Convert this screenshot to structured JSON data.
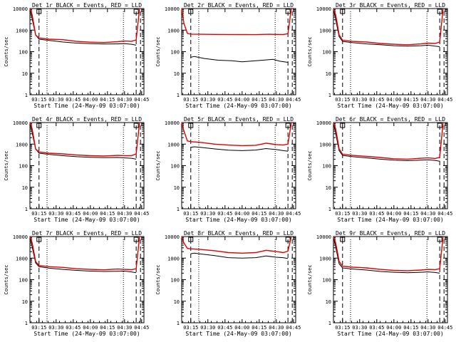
{
  "figure": {
    "xlabel": "Start Time (24-May-09 03:07:00)",
    "ylabel": "Counts/sec",
    "x_ticks": [
      "03:15",
      "03:30",
      "03:45",
      "04:00",
      "04:15",
      "04:30",
      "04:45"
    ],
    "y_ticks": [
      "1",
      "10",
      "100",
      "1000",
      "10000"
    ],
    "colors": {
      "events": "#000000",
      "lld": "#e00000",
      "axes": "#000000"
    }
  },
  "chart_data": [
    {
      "type": "line",
      "title": "Det 1r BLACK = Events, RED = LLD",
      "xlim": [
        3.117,
        4.783
      ],
      "ylim": [
        1,
        10000
      ],
      "yscale": "log",
      "grid": false,
      "vlines_dashed": [
        3.25,
        4.67,
        4.733
      ],
      "vlines_dotted": [
        3.367,
        4.483
      ],
      "series": [
        {
          "name": "Events",
          "color": "#000000",
          "x": [
            3.117,
            3.2,
            3.25,
            3.4,
            3.6,
            3.8,
            4.0,
            4.2,
            4.4,
            4.5,
            4.6,
            4.67
          ],
          "y": [
            10000,
            600,
            380,
            330,
            280,
            250,
            235,
            225,
            230,
            235,
            220,
            200
          ]
        },
        {
          "name": "LLD",
          "color": "#e00000",
          "x": [
            3.117,
            3.15,
            3.2,
            3.25,
            3.4,
            3.6,
            3.8,
            4.0,
            4.2,
            4.4,
            4.5,
            4.6,
            4.67,
            4.72
          ],
          "y": [
            10000,
            5000,
            600,
            430,
            380,
            360,
            300,
            275,
            265,
            290,
            310,
            300,
            350,
            10000
          ]
        }
      ]
    },
    {
      "type": "line",
      "title": "Det 2r BLACK = Events, RED = LLD",
      "xlim": [
        3.117,
        4.783
      ],
      "ylim": [
        1,
        10000
      ],
      "yscale": "log",
      "grid": false,
      "vlines_dashed": [
        3.25,
        4.67,
        4.733
      ],
      "vlines_dotted": [
        3.367,
        4.483
      ],
      "series": [
        {
          "name": "Events",
          "color": "#000000",
          "x": [
            3.25,
            3.3,
            3.45,
            3.65,
            3.85,
            4.0,
            4.15,
            4.3,
            4.45,
            4.55,
            4.67
          ],
          "y": [
            55,
            60,
            48,
            40,
            38,
            34,
            37,
            40,
            44,
            36,
            32
          ]
        },
        {
          "name": "LLD",
          "color": "#e00000",
          "x": [
            3.117,
            3.15,
            3.2,
            3.25,
            3.4,
            3.6,
            3.8,
            4.0,
            4.2,
            4.4,
            4.6,
            4.67,
            4.72
          ],
          "y": [
            10000,
            2000,
            700,
            650,
            640,
            630,
            625,
            620,
            615,
            640,
            620,
            680,
            10000
          ]
        }
      ]
    },
    {
      "type": "line",
      "title": "Det 3r BLACK = Events, RED = LLD",
      "xlim": [
        3.117,
        4.783
      ],
      "ylim": [
        1,
        10000
      ],
      "yscale": "log",
      "grid": false,
      "vlines_dashed": [
        3.25,
        4.67,
        4.733
      ],
      "vlines_dotted": [
        3.367,
        4.483
      ],
      "series": [
        {
          "name": "Events",
          "color": "#000000",
          "x": [
            3.117,
            3.2,
            3.25,
            3.4,
            3.6,
            3.8,
            4.0,
            4.2,
            4.4,
            4.5,
            4.6,
            4.67
          ],
          "y": [
            10000,
            500,
            300,
            260,
            230,
            210,
            190,
            180,
            190,
            200,
            180,
            170
          ]
        },
        {
          "name": "LLD",
          "color": "#e00000",
          "x": [
            3.117,
            3.15,
            3.2,
            3.25,
            3.4,
            3.6,
            3.8,
            4.0,
            4.2,
            4.4,
            4.5,
            4.6,
            4.67,
            4.72
          ],
          "y": [
            10000,
            5000,
            600,
            340,
            300,
            280,
            240,
            220,
            210,
            230,
            250,
            240,
            280,
            10000
          ]
        }
      ]
    },
    {
      "type": "line",
      "title": "Det 4r BLACK = Events, RED = LLD",
      "xlim": [
        3.117,
        4.783
      ],
      "ylim": [
        1,
        10000
      ],
      "yscale": "log",
      "grid": false,
      "vlines_dashed": [
        3.25,
        4.67,
        4.733
      ],
      "vlines_dotted": [
        3.367,
        4.483
      ],
      "series": [
        {
          "name": "Events",
          "color": "#000000",
          "x": [
            3.117,
            3.2,
            3.25,
            3.4,
            3.6,
            3.8,
            4.0,
            4.2,
            4.4,
            4.5,
            4.6,
            4.67
          ],
          "y": [
            10000,
            600,
            380,
            330,
            290,
            260,
            245,
            235,
            240,
            230,
            220,
            200
          ]
        },
        {
          "name": "LLD",
          "color": "#e00000",
          "x": [
            3.117,
            3.15,
            3.2,
            3.25,
            3.4,
            3.6,
            3.8,
            4.0,
            4.2,
            4.4,
            4.5,
            4.6,
            4.67,
            4.72
          ],
          "y": [
            10000,
            5000,
            600,
            430,
            380,
            350,
            310,
            290,
            280,
            300,
            290,
            290,
            350,
            10000
          ]
        }
      ]
    },
    {
      "type": "line",
      "title": "Det 5r BLACK = Events, RED = LLD",
      "xlim": [
        3.117,
        4.783
      ],
      "ylim": [
        1,
        10000
      ],
      "yscale": "log",
      "grid": false,
      "vlines_dashed": [
        3.25,
        4.67,
        4.733
      ],
      "vlines_dotted": [
        3.367,
        4.483
      ],
      "series": [
        {
          "name": "Events",
          "color": "#000000",
          "x": [
            3.25,
            3.3,
            3.4,
            3.6,
            3.8,
            4.0,
            4.2,
            4.35,
            4.5,
            4.6,
            4.67
          ],
          "y": [
            700,
            750,
            700,
            600,
            520,
            500,
            530,
            620,
            560,
            500,
            470
          ]
        },
        {
          "name": "LLD",
          "color": "#e00000",
          "x": [
            3.117,
            3.15,
            3.2,
            3.25,
            3.4,
            3.6,
            3.8,
            4.0,
            4.2,
            4.35,
            4.5,
            4.6,
            4.67,
            4.72
          ],
          "y": [
            10000,
            4000,
            1400,
            1300,
            1200,
            1000,
            900,
            850,
            880,
            1100,
            950,
            900,
            1000,
            10000
          ]
        }
      ]
    },
    {
      "type": "line",
      "title": "Det 6r BLACK = Events, RED = LLD",
      "xlim": [
        3.117,
        4.783
      ],
      "ylim": [
        1,
        10000
      ],
      "yscale": "log",
      "grid": false,
      "vlines_dashed": [
        3.25,
        4.67,
        4.733
      ],
      "vlines_dotted": [
        3.367,
        4.483
      ],
      "series": [
        {
          "name": "Events",
          "color": "#000000",
          "x": [
            3.117,
            3.2,
            3.25,
            3.4,
            3.6,
            3.8,
            4.0,
            4.2,
            4.4,
            4.5,
            4.6,
            4.67
          ],
          "y": [
            10000,
            500,
            300,
            260,
            230,
            200,
            180,
            170,
            180,
            185,
            175,
            160
          ]
        },
        {
          "name": "LLD",
          "color": "#e00000",
          "x": [
            3.117,
            3.15,
            3.2,
            3.25,
            3.4,
            3.6,
            3.8,
            4.0,
            4.2,
            4.4,
            4.5,
            4.6,
            4.67,
            4.72
          ],
          "y": [
            10000,
            5000,
            600,
            340,
            300,
            270,
            240,
            210,
            200,
            220,
            230,
            215,
            240,
            10000
          ]
        }
      ]
    },
    {
      "type": "line",
      "title": "Det 7r BLACK = Events, RED = LLD",
      "xlim": [
        3.117,
        4.783
      ],
      "ylim": [
        1,
        10000
      ],
      "yscale": "log",
      "grid": false,
      "vlines_dashed": [
        3.25,
        4.67,
        4.733
      ],
      "vlines_dotted": [
        3.367,
        4.483
      ],
      "series": [
        {
          "name": "Events",
          "color": "#000000",
          "x": [
            3.117,
            3.2,
            3.25,
            3.4,
            3.6,
            3.8,
            4.0,
            4.2,
            4.4,
            4.5,
            4.6,
            4.67
          ],
          "y": [
            10000,
            600,
            400,
            340,
            300,
            270,
            250,
            240,
            245,
            250,
            230,
            210
          ]
        },
        {
          "name": "LLD",
          "color": "#e00000",
          "x": [
            3.117,
            3.15,
            3.2,
            3.25,
            3.4,
            3.6,
            3.8,
            4.0,
            4.2,
            4.4,
            4.5,
            4.6,
            4.67,
            4.72
          ],
          "y": [
            10000,
            5000,
            700,
            450,
            400,
            370,
            320,
            300,
            285,
            310,
            300,
            290,
            320,
            10000
          ]
        }
      ]
    },
    {
      "type": "line",
      "title": "Det 8r BLACK = Events, RED = LLD",
      "xlim": [
        3.117,
        4.783
      ],
      "ylim": [
        1,
        10000
      ],
      "yscale": "log",
      "grid": false,
      "vlines_dashed": [
        3.25,
        4.67,
        4.733
      ],
      "vlines_dotted": [
        3.367,
        4.483
      ],
      "series": [
        {
          "name": "Events",
          "color": "#000000",
          "x": [
            3.25,
            3.3,
            3.4,
            3.6,
            3.8,
            4.0,
            4.2,
            4.35,
            4.5,
            4.6,
            4.67
          ],
          "y": [
            1600,
            1700,
            1550,
            1300,
            1050,
            1000,
            1050,
            1250,
            1100,
            1050,
            950
          ]
        },
        {
          "name": "LLD",
          "color": "#e00000",
          "x": [
            3.117,
            3.15,
            3.2,
            3.25,
            3.4,
            3.6,
            3.8,
            4.0,
            4.2,
            4.35,
            4.5,
            4.6,
            4.67,
            4.72
          ],
          "y": [
            10000,
            5000,
            2800,
            2700,
            2500,
            2200,
            1800,
            1700,
            1800,
            2300,
            2000,
            1800,
            2100,
            10000
          ]
        }
      ]
    },
    {
      "type": "line",
      "title": "Det 9r BLACK = Events, RED = LLD",
      "xlim": [
        3.117,
        4.783
      ],
      "ylim": [
        1,
        10000
      ],
      "yscale": "log",
      "grid": false,
      "vlines_dashed": [
        3.25,
        4.67,
        4.733
      ],
      "vlines_dotted": [
        3.367,
        4.483
      ],
      "series": [
        {
          "name": "Events",
          "color": "#000000",
          "x": [
            3.117,
            3.2,
            3.25,
            3.4,
            3.6,
            3.8,
            4.0,
            4.2,
            4.4,
            4.5,
            4.6,
            4.67
          ],
          "y": [
            10000,
            550,
            350,
            310,
            280,
            240,
            220,
            210,
            220,
            230,
            215,
            200
          ]
        },
        {
          "name": "LLD",
          "color": "#e00000",
          "x": [
            3.117,
            3.15,
            3.2,
            3.25,
            3.4,
            3.6,
            3.8,
            4.0,
            4.2,
            4.4,
            4.5,
            4.6,
            4.67,
            4.72
          ],
          "y": [
            10000,
            5000,
            700,
            420,
            380,
            350,
            300,
            270,
            260,
            280,
            300,
            290,
            320,
            10000
          ]
        }
      ]
    }
  ]
}
